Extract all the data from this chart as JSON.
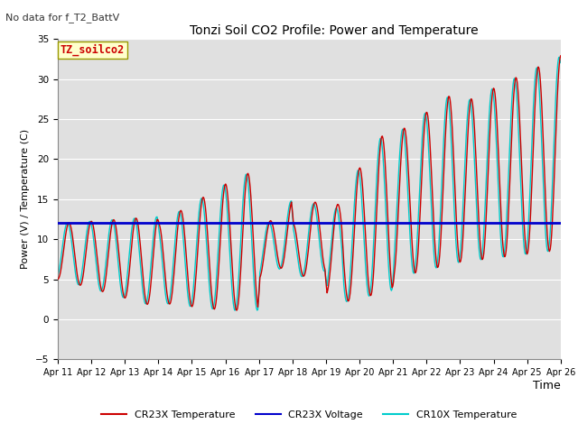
{
  "title": "Tonzi Soil CO2 Profile: Power and Temperature",
  "subtitle": "No data for f_T2_BattV",
  "ylabel": "Power (V) / Temperature (C)",
  "xlabel": "Time",
  "ylim": [
    -5,
    35
  ],
  "yticks": [
    -5,
    0,
    5,
    10,
    15,
    20,
    25,
    30,
    35
  ],
  "xlabels": [
    "Apr 11",
    "Apr 12",
    "Apr 13",
    "Apr 14",
    "Apr 15",
    "Apr 16",
    "Apr 17",
    "Apr 18",
    "Apr 19",
    "Apr 20",
    "Apr 21",
    "Apr 22",
    "Apr 23",
    "Apr 24",
    "Apr 25",
    "Apr 26"
  ],
  "voltage_value": 12.0,
  "annotation_text": "TZ_soilco2",
  "annotation_color": "#cc0000",
  "annotation_bg": "#ffffcc",
  "plot_bg": "#e0e0e0",
  "cr23x_temp_color": "#cc0000",
  "cr23x_volt_color": "#0000cc",
  "cr10x_temp_color": "#00cccc",
  "legend_entries": [
    "CR23X Temperature",
    "CR23X Voltage",
    "CR10X Temperature"
  ],
  "fig_width": 6.4,
  "fig_height": 4.8,
  "dpi": 100
}
